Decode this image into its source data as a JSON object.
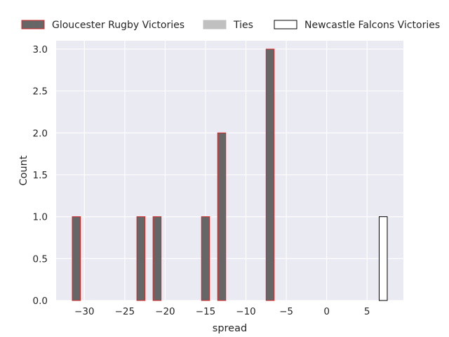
{
  "chart_data": {
    "type": "bar",
    "xlabel": "spread",
    "ylabel": "Count",
    "xlim": [
      -33.5,
      9.5
    ],
    "ylim": [
      0,
      3.1
    ],
    "bin_width": 1,
    "x_ticks": [
      -30,
      -25,
      -20,
      -15,
      -10,
      -5,
      0,
      5
    ],
    "x_tick_labels": [
      "−30",
      "−25",
      "−20",
      "−15",
      "−10",
      "−5",
      "0",
      "5"
    ],
    "y_ticks": [
      0,
      0.5,
      1,
      1.5,
      2,
      2.5,
      3
    ],
    "y_tick_labels": [
      "0.0",
      "0.5",
      "1.0",
      "1.5",
      "2.0",
      "2.5",
      "3.0"
    ],
    "grid": true,
    "legend_position": "top",
    "series": [
      {
        "name": "Gloucester Rugby Victories",
        "fill": "#666666",
        "edge": "#d62728",
        "x": [
          -31,
          -23,
          -21,
          -15,
          -13,
          -7
        ],
        "values": [
          1,
          1,
          1,
          1,
          2,
          3
        ]
      },
      {
        "name": "Ties",
        "fill": "#c0c0c0",
        "edge": "#c0c0c0",
        "x": [],
        "values": []
      },
      {
        "name": "Newcastle Falcons Victories",
        "fill": "#ffffff",
        "edge": "#000000",
        "x": [
          7
        ],
        "values": [
          1
        ]
      }
    ]
  }
}
